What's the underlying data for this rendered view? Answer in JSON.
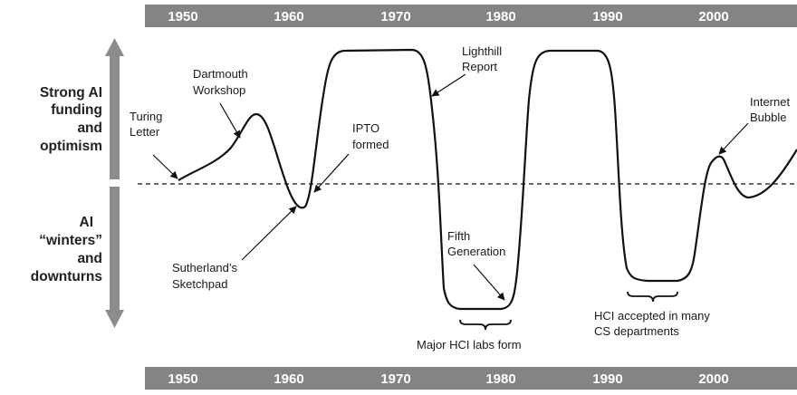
{
  "years_top": [
    "1950",
    "1960",
    "1970",
    "1980",
    "1990",
    "2000"
  ],
  "years_bottom": [
    "1950",
    "1960",
    "1970",
    "1980",
    "1990",
    "2000"
  ],
  "side_labels": {
    "upper": [
      "Strong AI",
      "funding",
      "and",
      "optimism"
    ],
    "lower": [
      "AI",
      "“winters”",
      "and",
      "downturns"
    ]
  },
  "annotations": {
    "turing": [
      "Turing",
      "Letter"
    ],
    "dartmouth": [
      "Dartmouth",
      "Workshop"
    ],
    "ipto": [
      "IPTO",
      "formed"
    ],
    "sutherland": [
      "Sutherland’s",
      "Sketchpad"
    ],
    "lighthill": [
      "Lighthill",
      "Report"
    ],
    "fifth_gen": [
      "Fifth",
      "Generation"
    ],
    "major_hci": [
      "Major HCI labs form"
    ],
    "hci_accepted": [
      "HCI accepted in many",
      "CS departments"
    ],
    "internet_bubble": [
      "Internet",
      "Bubble"
    ]
  },
  "colors": {
    "year_bar": "#848484",
    "side_arrow": "#8c8c8c",
    "curve": "#111111"
  }
}
